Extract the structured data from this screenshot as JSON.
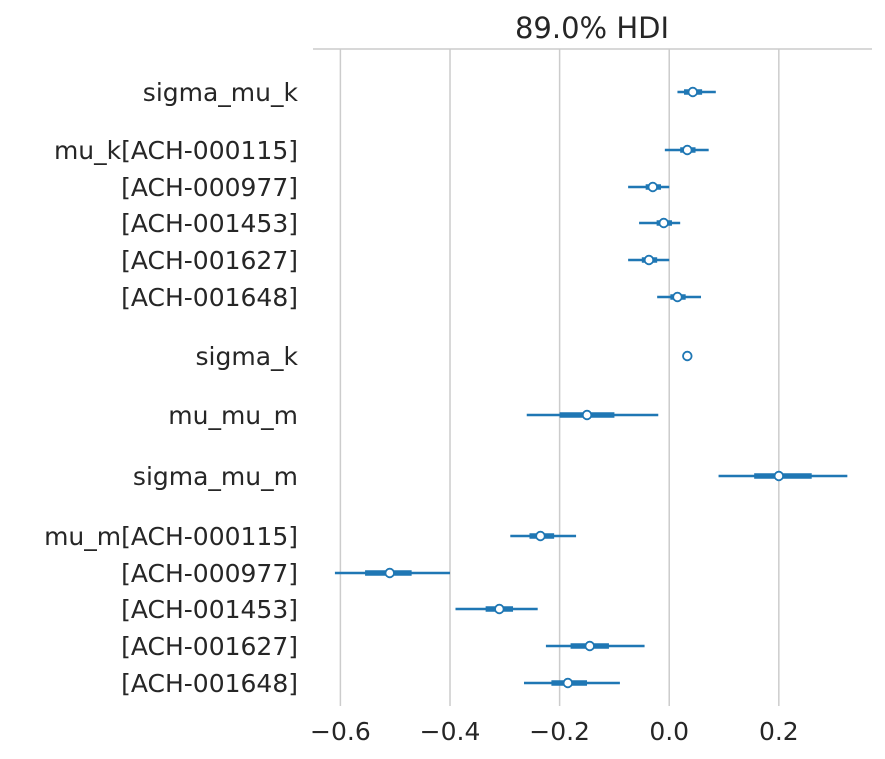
{
  "chart_data": {
    "type": "forest",
    "title": "89.0% HDI",
    "xlim": [
      -0.65,
      0.37
    ],
    "xticks": [
      -0.6,
      -0.4,
      -0.2,
      0.0,
      0.2
    ],
    "xtick_labels": [
      "−0.6",
      "−0.4",
      "−0.2",
      "0.0",
      "0.2"
    ],
    "grid": "vertical",
    "color": "#1f77b4",
    "rows": [
      {
        "label": "sigma_mu_k",
        "point": 0.043,
        "hdi_50": [
          0.027,
          0.06
        ],
        "hdi_89": [
          0.015,
          0.085
        ]
      },
      {
        "label": "mu_k[ACH-000115]",
        "point": 0.033,
        "hdi_50": [
          0.02,
          0.048
        ],
        "hdi_89": [
          -0.008,
          0.072
        ]
      },
      {
        "label": "[ACH-000977]",
        "point": -0.03,
        "hdi_50": [
          -0.043,
          -0.015
        ],
        "hdi_89": [
          -0.075,
          0.0
        ]
      },
      {
        "label": "[ACH-001453]",
        "point": -0.01,
        "hdi_50": [
          -0.023,
          0.005
        ],
        "hdi_89": [
          -0.055,
          0.02
        ]
      },
      {
        "label": "[ACH-001627]",
        "point": -0.037,
        "hdi_50": [
          -0.05,
          -0.022
        ],
        "hdi_89": [
          -0.075,
          0.0
        ]
      },
      {
        "label": "[ACH-001648]",
        "point": 0.015,
        "hdi_50": [
          0.002,
          0.03
        ],
        "hdi_89": [
          -0.022,
          0.058
        ]
      },
      {
        "label": "sigma_k",
        "point": 0.033,
        "hdi_50": [
          0.031,
          0.035
        ],
        "hdi_89": [
          0.03,
          0.036
        ]
      },
      {
        "label": "mu_mu_m",
        "point": -0.15,
        "hdi_50": [
          -0.2,
          -0.1
        ],
        "hdi_89": [
          -0.26,
          -0.02
        ]
      },
      {
        "label": "sigma_mu_m",
        "point": 0.2,
        "hdi_50": [
          0.155,
          0.26
        ],
        "hdi_89": [
          0.09,
          0.325
        ]
      },
      {
        "label": "mu_m[ACH-000115]",
        "point": -0.235,
        "hdi_50": [
          -0.255,
          -0.21
        ],
        "hdi_89": [
          -0.29,
          -0.17
        ]
      },
      {
        "label": "[ACH-000977]",
        "point": -0.51,
        "hdi_50": [
          -0.555,
          -0.47
        ],
        "hdi_89": [
          -0.61,
          -0.4
        ]
      },
      {
        "label": "[ACH-001453]",
        "point": -0.31,
        "hdi_50": [
          -0.335,
          -0.285
        ],
        "hdi_89": [
          -0.39,
          -0.24
        ]
      },
      {
        "label": "[ACH-001627]",
        "point": -0.145,
        "hdi_50": [
          -0.18,
          -0.11
        ],
        "hdi_89": [
          -0.225,
          -0.045
        ]
      },
      {
        "label": "[ACH-001648]",
        "point": -0.185,
        "hdi_50": [
          -0.215,
          -0.15
        ],
        "hdi_89": [
          -0.265,
          -0.09
        ]
      }
    ]
  }
}
